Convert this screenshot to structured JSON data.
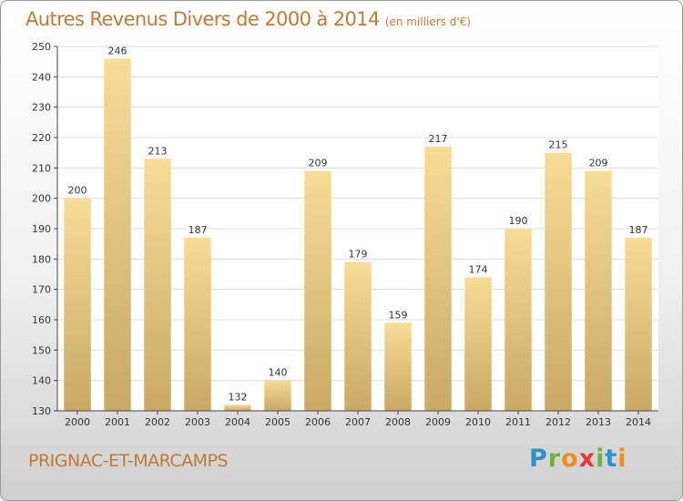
{
  "title": "Autres Revenus Divers de 2000 à 2014",
  "subtitle": "(en milliers d'€)",
  "location": "PRIGNAC-ET-MARCAMPS",
  "logo": {
    "letters": [
      "P",
      "r",
      "o",
      "x",
      "i",
      "t",
      "i"
    ],
    "colors": [
      "#2e8fcf",
      "#6cb33e",
      "#f28c1c",
      "#e03a3a",
      "#6cb33e",
      "#2e8fcf",
      "#f28c1c"
    ]
  },
  "chart_data": {
    "type": "bar",
    "categories": [
      "2000",
      "2001",
      "2002",
      "2003",
      "2004",
      "2005",
      "2006",
      "2007",
      "2008",
      "2009",
      "2010",
      "2011",
      "2012",
      "2013",
      "2014"
    ],
    "values": [
      200,
      246,
      213,
      187,
      132,
      140,
      209,
      179,
      159,
      217,
      174,
      190,
      215,
      209,
      187
    ],
    "ylim": [
      130,
      250
    ],
    "yticks": [
      130,
      140,
      150,
      160,
      170,
      180,
      190,
      200,
      210,
      220,
      230,
      240,
      250
    ],
    "grid": true,
    "colors": {
      "bar_light": "#f7dc96",
      "bar_dark": "#c9a964",
      "grid": "#dddddd",
      "axis": "#444444"
    }
  }
}
